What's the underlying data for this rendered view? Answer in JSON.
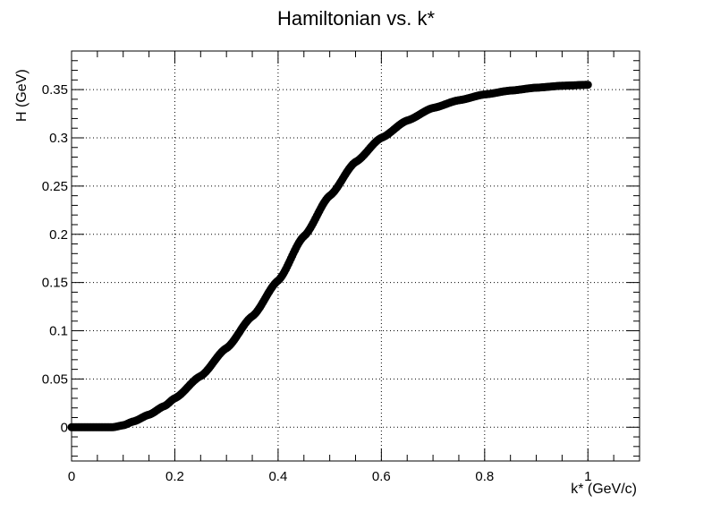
{
  "chart_data": {
    "type": "scatter",
    "title": "Hamiltonian vs. k*",
    "xlabel": "k* (GeV/c)",
    "ylabel": "H (GeV)",
    "xlim": [
      0,
      1.1
    ],
    "ylim": [
      -0.035,
      0.39
    ],
    "x_ticks": [
      "0",
      "0.2",
      "0.4",
      "0.6",
      "0.8",
      "1"
    ],
    "x_tick_values": [
      0,
      0.2,
      0.4,
      0.6,
      0.8,
      1.0
    ],
    "y_ticks": [
      "0",
      "0.05",
      "0.1",
      "0.15",
      "0.2",
      "0.25",
      "0.3",
      "0.35"
    ],
    "y_tick_values": [
      0,
      0.05,
      0.1,
      0.15,
      0.2,
      0.25,
      0.3,
      0.35
    ],
    "grid": true,
    "marker_color": "#000000",
    "series": [
      {
        "x": [
          0.0,
          0.05,
          0.08,
          0.1,
          0.12,
          0.15,
          0.18,
          0.2,
          0.25,
          0.3,
          0.35,
          0.4,
          0.45,
          0.5,
          0.55,
          0.6,
          0.65,
          0.7,
          0.75,
          0.8,
          0.85,
          0.9,
          0.95,
          1.0
        ],
        "y": [
          0.0,
          0.0,
          0.0,
          0.002,
          0.006,
          0.013,
          0.022,
          0.03,
          0.053,
          0.082,
          0.115,
          0.152,
          0.198,
          0.24,
          0.275,
          0.3,
          0.318,
          0.331,
          0.339,
          0.345,
          0.349,
          0.352,
          0.354,
          0.355
        ]
      }
    ]
  }
}
